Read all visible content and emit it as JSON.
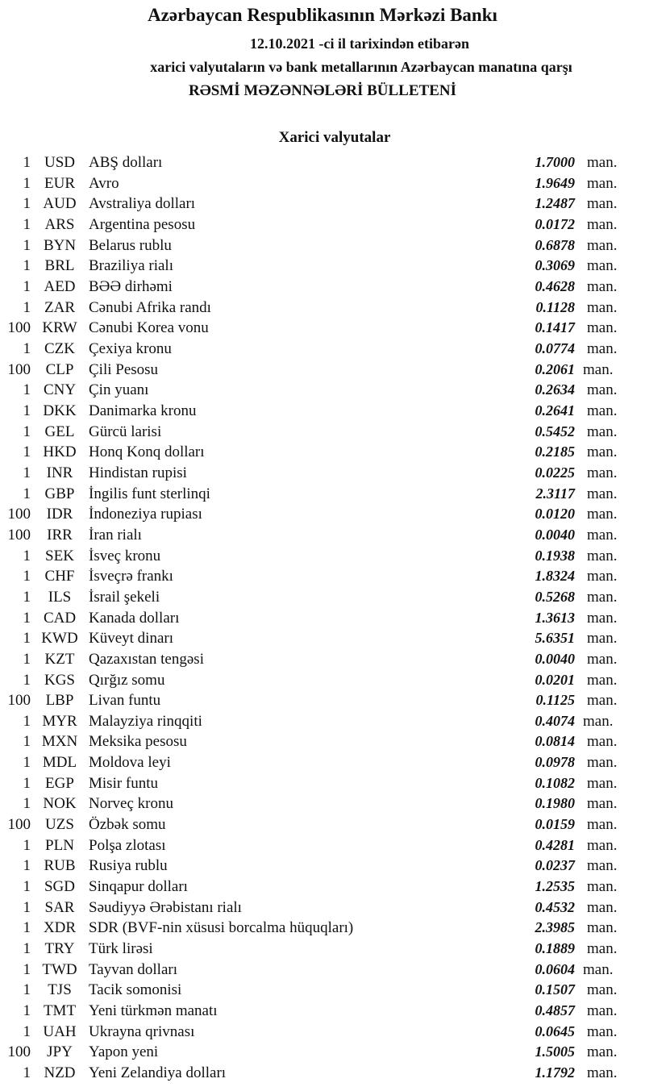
{
  "header": {
    "title": "Azərbaycan Respublikasının Mərkəzi Bankı",
    "date_line": "12.10.2021  -ci il tarixindən etibarən",
    "subtitle": "xarici valyutaların və bank metallarının Azərbaycan manatına qarşı",
    "bulletin": "RƏSMİ MƏZƏNNƏLƏRİ BÜLLETENİ",
    "section": "Xarici valyutalar"
  },
  "rates": [
    {
      "amount": "1",
      "code": "USD",
      "name": "ABŞ dolları",
      "value": "1.7000",
      "unit": "man."
    },
    {
      "amount": "1",
      "code": "EUR",
      "name": "Avro",
      "value": "1.9649",
      "unit": "man."
    },
    {
      "amount": "1",
      "code": "AUD",
      "name": "Avstraliya dolları",
      "value": "1.2487",
      "unit": "man."
    },
    {
      "amount": "1",
      "code": "ARS",
      "name": "Argentina pesosu",
      "value": "0.0172",
      "unit": "man."
    },
    {
      "amount": "1",
      "code": "BYN",
      "name": "Belarus rublu",
      "value": "0.6878",
      "unit": "man."
    },
    {
      "amount": "1",
      "code": "BRL",
      "name": "Braziliya rialı",
      "value": "0.3069",
      "unit": "man."
    },
    {
      "amount": "1",
      "code": "AED",
      "name": "BƏƏ dirhəmi",
      "value": "0.4628",
      "unit": "man."
    },
    {
      "amount": "1",
      "code": "ZAR",
      "name": "Cənubi Afrika randı",
      "value": "0.1128",
      "unit": "man."
    },
    {
      "amount": "100",
      "code": "KRW",
      "name": "Cənubi Korea vonu",
      "value": "0.1417",
      "unit": "man."
    },
    {
      "amount": "1",
      "code": "CZK",
      "name": "Çexiya kronu",
      "value": "0.0774",
      "unit": "man."
    },
    {
      "amount": "100",
      "code": "CLP",
      "name": "Çili Pesosu",
      "value": "0.2061",
      "unit": "man."
    },
    {
      "amount": "1",
      "code": "CNY",
      "name": "Çin yuanı",
      "value": "0.2634",
      "unit": "man."
    },
    {
      "amount": "1",
      "code": "DKK",
      "name": "Danimarka kronu",
      "value": "0.2641",
      "unit": "man."
    },
    {
      "amount": "1",
      "code": "GEL",
      "name": "Gürcü larisi",
      "value": "0.5452",
      "unit": "man."
    },
    {
      "amount": "1",
      "code": "HKD",
      "name": "Honq Konq dolları",
      "value": "0.2185",
      "unit": "man."
    },
    {
      "amount": "1",
      "code": "INR",
      "name": "Hindistan rupisi",
      "value": "0.0225",
      "unit": "man."
    },
    {
      "amount": "1",
      "code": "GBP",
      "name": "İngilis funt sterlinqi",
      "value": "2.3117",
      "unit": "man."
    },
    {
      "amount": "100",
      "code": "IDR",
      "name": "İndoneziya rupiası",
      "value": "0.0120",
      "unit": "man."
    },
    {
      "amount": "100",
      "code": "IRR",
      "name": "İran rialı",
      "value": "0.0040",
      "unit": "man."
    },
    {
      "amount": "1",
      "code": "SEK",
      "name": "İsveç kronu",
      "value": "0.1938",
      "unit": "man."
    },
    {
      "amount": "1",
      "code": "CHF",
      "name": "İsveçrə frankı",
      "value": "1.8324",
      "unit": "man."
    },
    {
      "amount": "1",
      "code": "ILS",
      "name": "İsrail şekeli",
      "value": "0.5268",
      "unit": "man."
    },
    {
      "amount": "1",
      "code": "CAD",
      "name": "Kanada dolları",
      "value": "1.3613",
      "unit": "man."
    },
    {
      "amount": "1",
      "code": "KWD",
      "name": "Küveyt dinarı",
      "value": "5.6351",
      "unit": "man."
    },
    {
      "amount": "1",
      "code": "KZT",
      "name": "Qazaxıstan tengəsi",
      "value": "0.0040",
      "unit": "man."
    },
    {
      "amount": "1",
      "code": "KGS",
      "name": "Qırğız somu",
      "value": "0.0201",
      "unit": "man."
    },
    {
      "amount": "100",
      "code": "LBP",
      "name": "Livan funtu",
      "value": "0.1125",
      "unit": "man."
    },
    {
      "amount": "1",
      "code": "MYR",
      "name": "Malayziya rinqqiti",
      "value": "0.4074",
      "unit": "man."
    },
    {
      "amount": "1",
      "code": "MXN",
      "name": "Meksika pesosu",
      "value": "0.0814",
      "unit": "man."
    },
    {
      "amount": "1",
      "code": "MDL",
      "name": "Moldova leyi",
      "value": "0.0978",
      "unit": "man."
    },
    {
      "amount": "1",
      "code": "EGP",
      "name": "Misir funtu",
      "value": "0.1082",
      "unit": "man."
    },
    {
      "amount": "1",
      "code": "NOK",
      "name": "Norveç kronu",
      "value": "0.1980",
      "unit": "man."
    },
    {
      "amount": "100",
      "code": "UZS",
      "name": "Özbək somu",
      "value": "0.0159",
      "unit": "man."
    },
    {
      "amount": "1",
      "code": "PLN",
      "name": "Polşa zlotası",
      "value": "0.4281",
      "unit": "man."
    },
    {
      "amount": "1",
      "code": "RUB",
      "name": "Rusiya rublu",
      "value": "0.0237",
      "unit": "man."
    },
    {
      "amount": "1",
      "code": "SGD",
      "name": "Sinqapur dolları",
      "value": "1.2535",
      "unit": "man."
    },
    {
      "amount": "1",
      "code": "SAR",
      "name": "Səudiyyə Ərəbistanı rialı",
      "value": "0.4532",
      "unit": "man."
    },
    {
      "amount": "1",
      "code": "XDR",
      "name": "SDR (BVF-nin xüsusi borcalma hüquqları)",
      "value": "2.3985",
      "unit": "man."
    },
    {
      "amount": "1",
      "code": "TRY",
      "name": "Türk lirəsi",
      "value": "0.1889",
      "unit": "man."
    },
    {
      "amount": "1",
      "code": "TWD",
      "name": "Tayvan dolları",
      "value": "0.0604",
      "unit": "man."
    },
    {
      "amount": "1",
      "code": "TJS",
      "name": "Tacik somonisi",
      "value": "0.1507",
      "unit": "man."
    },
    {
      "amount": "1",
      "code": "TMT",
      "name": "Yeni türkmən manatı",
      "value": "0.4857",
      "unit": "man."
    },
    {
      "amount": "1",
      "code": "UAH",
      "name": "Ukrayna qrivnası",
      "value": "0.0645",
      "unit": "man."
    },
    {
      "amount": "100",
      "code": "JPY",
      "name": "Yapon yeni",
      "value": "1.5005",
      "unit": "man."
    },
    {
      "amount": "1",
      "code": "NZD",
      "name": "Yeni Zelandiya dolları",
      "value": "1.1792",
      "unit": "man."
    }
  ]
}
